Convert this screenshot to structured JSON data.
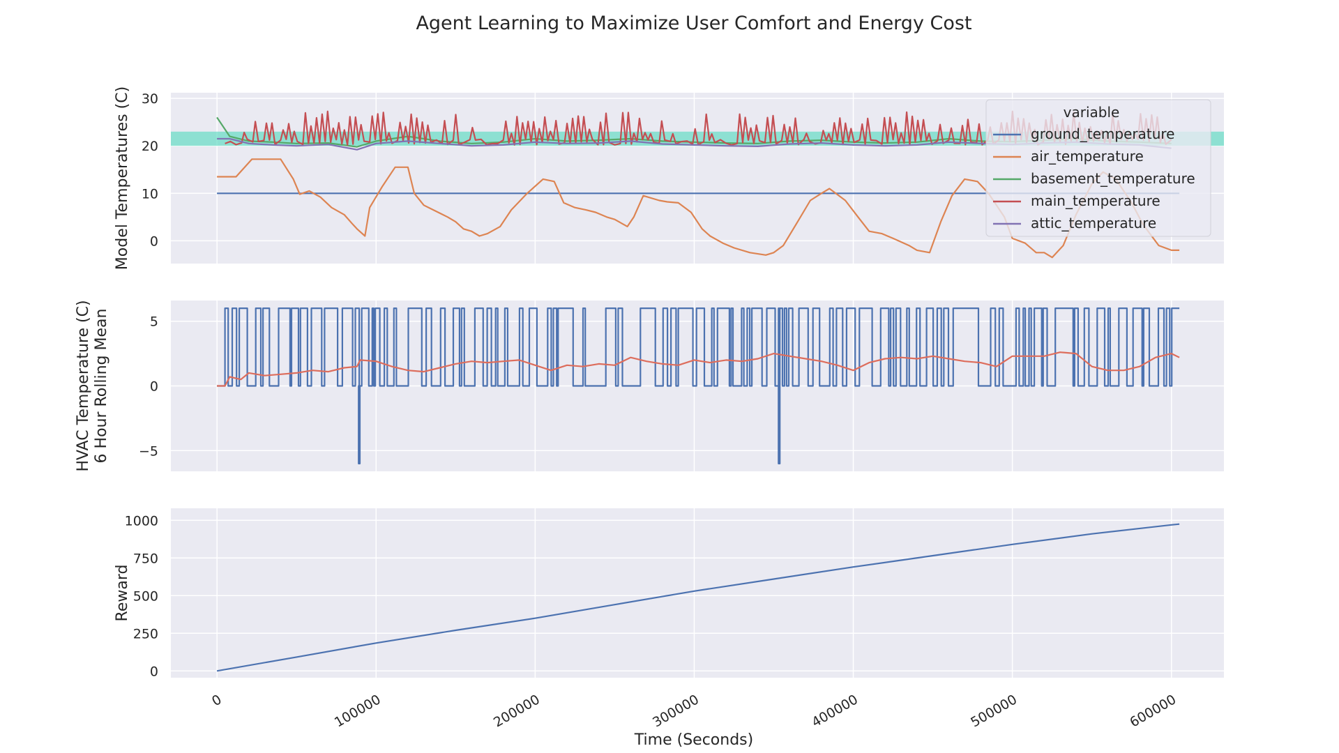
{
  "chart_data": {
    "title": "Agent Learning to Maximize User Comfort and Energy Cost",
    "xlabel": "Time (Seconds)",
    "xlim": [
      -29000,
      633000
    ],
    "xticks": [
      0,
      100000,
      200000,
      300000,
      400000,
      500000,
      600000
    ],
    "panels": [
      {
        "type": "line",
        "ylabel": [
          "Model Temperatures (C)"
        ],
        "ylim": [
          -4.8,
          31.2
        ],
        "yticks": [
          0,
          10,
          20,
          30
        ],
        "grid": true,
        "comfort_band": {
          "ymin": 20,
          "ymax": 23,
          "color": "#4fd9bd"
        },
        "legend": {
          "title": "variable",
          "position": "top-right"
        },
        "series": [
          {
            "name": "ground_temperature",
            "color": "#4c72b0",
            "x": [
              0,
              605000
            ],
            "y": [
              10,
              10
            ]
          },
          {
            "name": "air_temperature",
            "color": "#dd8452",
            "x": [
              0,
              12000,
              22000,
              40000,
              48000,
              52000,
              58000,
              65000,
              72000,
              80000,
              85000,
              88000,
              93000,
              96000,
              104000,
              112000,
              120000,
              124000,
              130000,
              136000,
              145000,
              150000,
              155000,
              160000,
              165000,
              170000,
              178000,
              185000,
              195000,
              205000,
              212000,
              218000,
              225000,
              232000,
              238000,
              245000,
              250000,
              258000,
              262000,
              268000,
              278000,
              283000,
              290000,
              298000,
              305000,
              310000,
              318000,
              325000,
              335000,
              345000,
              350000,
              356000,
              365000,
              373000,
              380000,
              385000,
              395000,
              403000,
              410000,
              418000,
              425000,
              435000,
              440000,
              448000,
              455000,
              462000,
              470000,
              478000,
              485000,
              495000,
              500000,
              508000,
              515000,
              520000,
              525000,
              532000,
              540000,
              550000,
              557000,
              565000,
              575000,
              582000,
              592000,
              600000,
              605000
            ],
            "y": [
              13.5,
              13.5,
              17.2,
              17.2,
              13,
              9.8,
              10.5,
              9.2,
              7,
              5.5,
              3.6,
              2.5,
              1,
              7,
              11.5,
              15.5,
              15.5,
              10,
              7.5,
              6.5,
              5,
              4,
              2.5,
              2,
              1,
              1.5,
              3,
              6.5,
              10,
              13,
              12.5,
              8,
              7,
              6.5,
              6,
              5,
              4.5,
              3,
              5,
              9.5,
              8.5,
              8.2,
              8,
              6,
              2.5,
              1,
              -0.5,
              -1.5,
              -2.5,
              -3,
              -2.5,
              -1,
              4,
              8.5,
              10,
              11,
              8.5,
              5,
              2,
              1.5,
              0.5,
              -1,
              -2,
              -2.5,
              4,
              9.5,
              13,
              12.5,
              10,
              5,
              0.5,
              -0.5,
              -2.5,
              -2.5,
              -3.5,
              -1,
              5.5,
              12,
              14.5,
              13,
              8,
              3.5,
              -1,
              -2,
              -2
            ]
          },
          {
            "name": "basement_temperature",
            "color": "#55a868",
            "x": [
              0,
              8000,
              20000,
              35000,
              50000,
              70000,
              88000,
              100000,
              120000,
              140000,
              160000,
              180000,
              200000,
              220000,
              240000,
              260000,
              280000,
              300000,
              320000,
              340000,
              360000,
              380000,
              400000,
              420000,
              440000,
              460000,
              480000,
              500000,
              520000,
              540000,
              560000,
              580000,
              600000
            ],
            "y": [
              26,
              22,
              21,
              20.8,
              20.5,
              20.6,
              19.8,
              21,
              22,
              21,
              20.5,
              20.8,
              21.5,
              21,
              21.2,
              21.5,
              21,
              20.8,
              20.6,
              20.5,
              21,
              21.2,
              20.8,
              20.6,
              20.8,
              21.5,
              21,
              20.9,
              21.2,
              21.5,
              21,
              20.8,
              20.5
            ]
          },
          {
            "name": "main_temperature",
            "color": "#c44e52",
            "spikes": {
              "t0": 5000,
              "t1": 603000,
              "step": 3500,
              "base": 21,
              "amp": 4.8,
              "seed": 7
            },
            "x": [],
            "y": []
          },
          {
            "name": "attic_temperature",
            "color": "#8172b3",
            "x": [
              0,
              8000,
              20000,
              35000,
              50000,
              70000,
              88000,
              100000,
              120000,
              140000,
              160000,
              180000,
              200000,
              220000,
              240000,
              260000,
              280000,
              300000,
              320000,
              340000,
              360000,
              380000,
              400000,
              420000,
              440000,
              460000,
              480000,
              500000,
              520000,
              540000,
              560000,
              580000,
              600000
            ],
            "y": [
              21.5,
              21.5,
              20.5,
              20.2,
              20,
              20.3,
              19.2,
              20.5,
              21,
              20.5,
              20,
              20.2,
              20.8,
              20.5,
              20.6,
              21,
              20.4,
              20.2,
              20,
              19.9,
              20.4,
              20.6,
              20.2,
              20,
              20.2,
              20.8,
              20.5,
              20.3,
              20.6,
              20.8,
              20.4,
              20.2,
              19.5
            ]
          }
        ]
      },
      {
        "type": "line",
        "ylabel": [
          "HVAC Temperature (C)",
          "6 Hour Rolling Mean"
        ],
        "ylim": [
          -6.6,
          6.6
        ],
        "yticks": [
          -5,
          0,
          5
        ],
        "grid": true,
        "series": [
          {
            "name": "",
            "color": "#4c72b0",
            "square": {
              "t0": 0,
              "t1": 605000,
              "step": 1500,
              "low": 0,
              "high": 6,
              "seed": 3
            },
            "dips": [
              {
                "x": 89000,
                "y": -6
              },
              {
                "x": 353000,
                "y": -6
              }
            ],
            "x": [],
            "y": []
          },
          {
            "name": "",
            "color": "#dd6d5c",
            "x": [
              0,
              5000,
              8000,
              15000,
              20000,
              30000,
              40000,
              50000,
              60000,
              70000,
              80000,
              88000,
              90000,
              100000,
              110000,
              120000,
              130000,
              140000,
              150000,
              160000,
              170000,
              180000,
              190000,
              200000,
              210000,
              220000,
              230000,
              240000,
              250000,
              260000,
              270000,
              280000,
              290000,
              300000,
              310000,
              320000,
              330000,
              340000,
              350000,
              360000,
              370000,
              380000,
              390000,
              400000,
              410000,
              420000,
              430000,
              440000,
              450000,
              460000,
              470000,
              480000,
              490000,
              500000,
              510000,
              520000,
              530000,
              540000,
              550000,
              560000,
              570000,
              580000,
              590000,
              600000,
              605000
            ],
            "y": [
              0,
              0,
              0.7,
              0.5,
              1,
              0.8,
              0.9,
              1,
              1.2,
              1.1,
              1.4,
              1.5,
              2,
              1.9,
              1.5,
              1.2,
              1.1,
              1.4,
              1.7,
              1.9,
              1.8,
              1.9,
              2,
              1.6,
              1.2,
              1.6,
              1.5,
              1.7,
              1.6,
              2.2,
              1.9,
              1.7,
              1.6,
              2,
              1.8,
              2,
              1.9,
              2.1,
              2.5,
              2.3,
              2.1,
              1.9,
              1.6,
              1.2,
              1.8,
              2.1,
              2.2,
              2.1,
              2.3,
              2.1,
              1.9,
              1.8,
              1.5,
              2.3,
              2.3,
              2.3,
              2.6,
              2.5,
              1.5,
              1.2,
              1.2,
              1.5,
              2.2,
              2.5,
              2.2
            ]
          }
        ]
      },
      {
        "type": "line",
        "ylabel": [
          "Reward"
        ],
        "ylim": [
          -45,
          1080
        ],
        "yticks": [
          0,
          250,
          500,
          750,
          1000
        ],
        "grid": true,
        "series": [
          {
            "name": "",
            "color": "#4c72b0",
            "x": [
              0,
              50000,
              100000,
              150000,
              200000,
              250000,
              300000,
              350000,
              400000,
              450000,
              500000,
              550000,
              600000,
              605000
            ],
            "y": [
              0,
              92,
              185,
              270,
              350,
              440,
              530,
              610,
              690,
              765,
              840,
              910,
              970,
              975
            ]
          }
        ]
      }
    ]
  }
}
